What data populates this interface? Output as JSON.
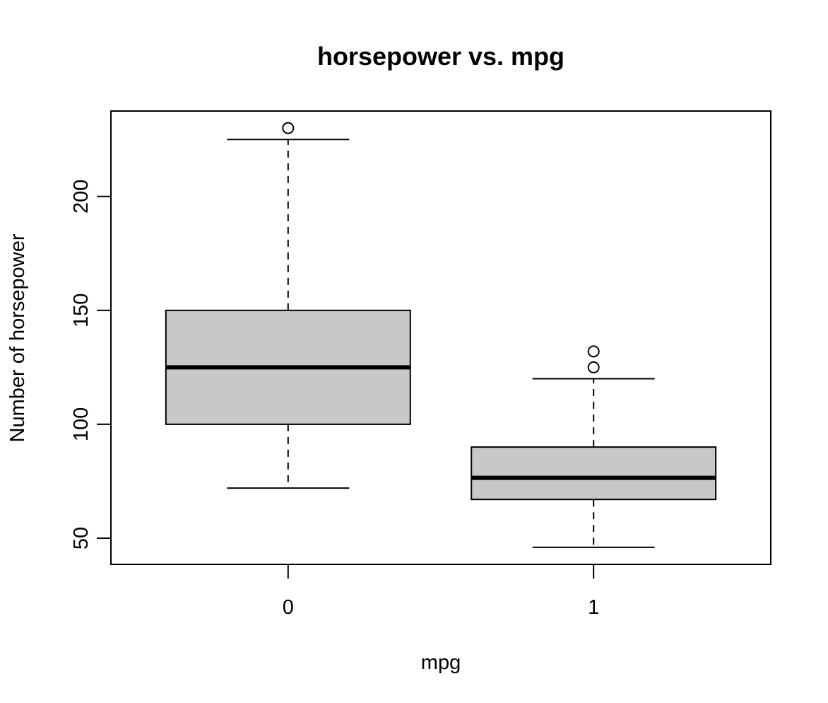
{
  "chart_data": {
    "type": "boxplot",
    "title": "horsepower vs. mpg",
    "xlabel": "mpg",
    "ylabel": "Number of horsepower",
    "categories": [
      "0",
      "1"
    ],
    "ylim": [
      38.5,
      237.5
    ],
    "yticks": [
      "50",
      "100",
      "150",
      "200"
    ],
    "grid": false,
    "boxes": [
      {
        "category": "0",
        "whisker_low": 72,
        "q1": 100,
        "median": 125,
        "q3": 150,
        "whisker_high": 225,
        "outliers": [
          230
        ]
      },
      {
        "category": "1",
        "whisker_low": 46,
        "q1": 67,
        "median": 76.5,
        "q3": 90,
        "whisker_high": 120,
        "outliers": [
          125,
          132
        ]
      }
    ],
    "colors": {
      "box_fill": "#c8c8c8",
      "stroke": "#000000"
    }
  }
}
